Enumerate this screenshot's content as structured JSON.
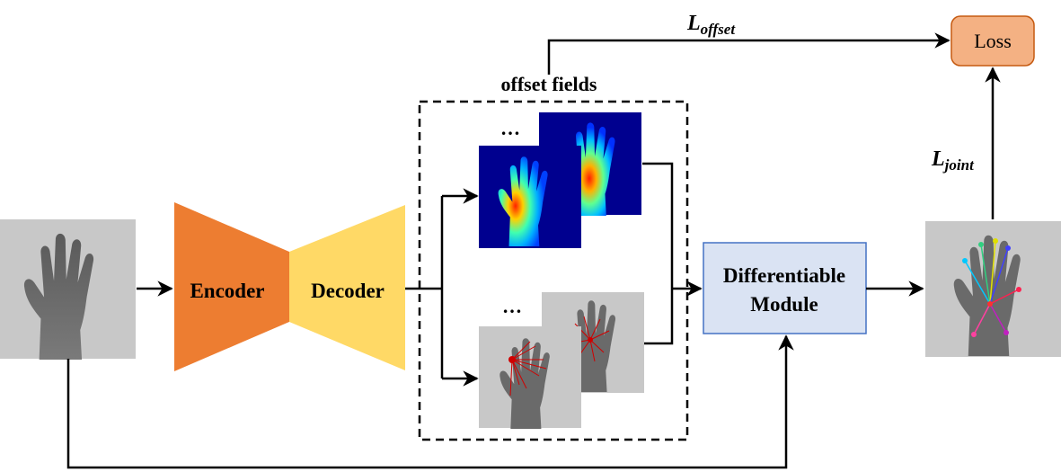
{
  "labels": {
    "encoder": "Encoder",
    "decoder": "Decoder",
    "offset_fields": "offset fields",
    "differentiable_line1": "Differentiable",
    "differentiable_line2": "Module",
    "loss": "Loss",
    "l_offset_main": "L",
    "l_offset_sub": "offset",
    "l_joint_main": "L",
    "l_joint_sub": "joint",
    "ellipsis": "…"
  },
  "colors": {
    "encoder": "#ED7D31",
    "decoder": "#FFD966",
    "module_fill": "#DAE3F3",
    "module_stroke": "#4472C4",
    "loss_fill": "#F4B183",
    "loss_stroke": "#C55A11",
    "depth_bg": "#C8C8C8",
    "hand_depth": "#666666",
    "heatmap_bg": "#00008F"
  }
}
